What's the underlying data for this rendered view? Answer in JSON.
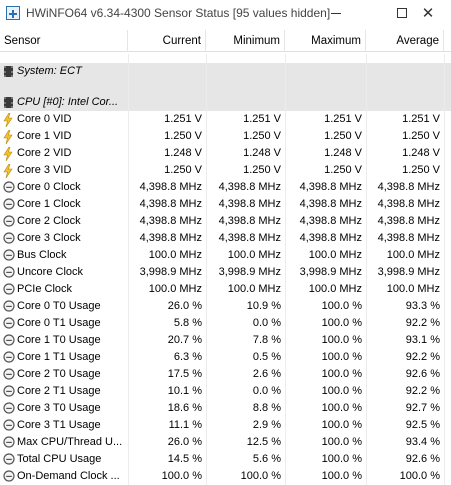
{
  "window": {
    "title": "HWiNFO64 v6.34-4300 Sensor Status [95 values hidden]",
    "close_glyph": "✕"
  },
  "columns": [
    "Sensor",
    "Current",
    "Minimum",
    "Maximum",
    "Average"
  ],
  "groups": [
    {
      "label": "System: ECT"
    },
    {
      "label": "CPU [#0]: Intel Cor..."
    }
  ],
  "rows": [
    {
      "icon": "bolt-icon",
      "name": "Core 0 VID",
      "current": "1.251 V",
      "minimum": "1.251 V",
      "maximum": "1.251 V",
      "average": "1.251 V"
    },
    {
      "icon": "bolt-icon",
      "name": "Core 1 VID",
      "current": "1.250 V",
      "minimum": "1.250 V",
      "maximum": "1.250 V",
      "average": "1.250 V"
    },
    {
      "icon": "bolt-icon",
      "name": "Core 2 VID",
      "current": "1.248 V",
      "minimum": "1.248 V",
      "maximum": "1.248 V",
      "average": "1.248 V"
    },
    {
      "icon": "bolt-icon",
      "name": "Core 3 VID",
      "current": "1.250 V",
      "minimum": "1.250 V",
      "maximum": "1.250 V",
      "average": "1.250 V"
    },
    {
      "icon": "clock-icon",
      "name": "Core 0 Clock",
      "current": "4,398.8 MHz",
      "minimum": "4,398.8 MHz",
      "maximum": "4,398.8 MHz",
      "average": "4,398.8 MHz"
    },
    {
      "icon": "clock-icon",
      "name": "Core 1 Clock",
      "current": "4,398.8 MHz",
      "minimum": "4,398.8 MHz",
      "maximum": "4,398.8 MHz",
      "average": "4,398.8 MHz"
    },
    {
      "icon": "clock-icon",
      "name": "Core 2 Clock",
      "current": "4,398.8 MHz",
      "minimum": "4,398.8 MHz",
      "maximum": "4,398.8 MHz",
      "average": "4,398.8 MHz"
    },
    {
      "icon": "clock-icon",
      "name": "Core 3 Clock",
      "current": "4,398.8 MHz",
      "minimum": "4,398.8 MHz",
      "maximum": "4,398.8 MHz",
      "average": "4,398.8 MHz"
    },
    {
      "icon": "clock-icon",
      "name": "Bus Clock",
      "current": "100.0 MHz",
      "minimum": "100.0 MHz",
      "maximum": "100.0 MHz",
      "average": "100.0 MHz"
    },
    {
      "icon": "clock-icon",
      "name": "Uncore Clock",
      "current": "3,998.9 MHz",
      "minimum": "3,998.9 MHz",
      "maximum": "3,998.9 MHz",
      "average": "3,998.9 MHz"
    },
    {
      "icon": "clock-icon",
      "name": "PCIe Clock",
      "current": "100.0 MHz",
      "minimum": "100.0 MHz",
      "maximum": "100.0 MHz",
      "average": "100.0 MHz"
    },
    {
      "icon": "clock-icon",
      "name": "Core 0 T0 Usage",
      "current": "26.0 %",
      "minimum": "10.9 %",
      "maximum": "100.0 %",
      "average": "93.3 %"
    },
    {
      "icon": "clock-icon",
      "name": "Core 0 T1 Usage",
      "current": "5.8 %",
      "minimum": "0.0 %",
      "maximum": "100.0 %",
      "average": "92.2 %"
    },
    {
      "icon": "clock-icon",
      "name": "Core 1 T0 Usage",
      "current": "20.7 %",
      "minimum": "7.8 %",
      "maximum": "100.0 %",
      "average": "93.1 %"
    },
    {
      "icon": "clock-icon",
      "name": "Core 1 T1 Usage",
      "current": "6.3 %",
      "minimum": "0.5 %",
      "maximum": "100.0 %",
      "average": "92.2 %"
    },
    {
      "icon": "clock-icon",
      "name": "Core 2 T0 Usage",
      "current": "17.5 %",
      "minimum": "2.6 %",
      "maximum": "100.0 %",
      "average": "92.6 %"
    },
    {
      "icon": "clock-icon",
      "name": "Core 2 T1 Usage",
      "current": "10.1 %",
      "minimum": "0.0 %",
      "maximum": "100.0 %",
      "average": "92.2 %"
    },
    {
      "icon": "clock-icon",
      "name": "Core 3 T0 Usage",
      "current": "18.6 %",
      "minimum": "8.8 %",
      "maximum": "100.0 %",
      "average": "92.7 %"
    },
    {
      "icon": "clock-icon",
      "name": "Core 3 T1 Usage",
      "current": "11.1 %",
      "minimum": "2.9 %",
      "maximum": "100.0 %",
      "average": "92.5 %"
    },
    {
      "icon": "clock-icon",
      "name": "Max CPU/Thread U...",
      "current": "26.0 %",
      "minimum": "12.5 %",
      "maximum": "100.0 %",
      "average": "93.4 %"
    },
    {
      "icon": "clock-icon",
      "name": "Total CPU Usage",
      "current": "14.5 %",
      "minimum": "5.6 %",
      "maximum": "100.0 %",
      "average": "92.6 %"
    },
    {
      "icon": "clock-icon",
      "name": "On-Demand Clock ...",
      "current": "100.0 %",
      "minimum": "100.0 %",
      "maximum": "100.0 %",
      "average": "100.0 %"
    }
  ],
  "colors": {
    "bolt": "#f2c12e",
    "group_bg": "#e6e6e6",
    "clock": "#555555"
  }
}
